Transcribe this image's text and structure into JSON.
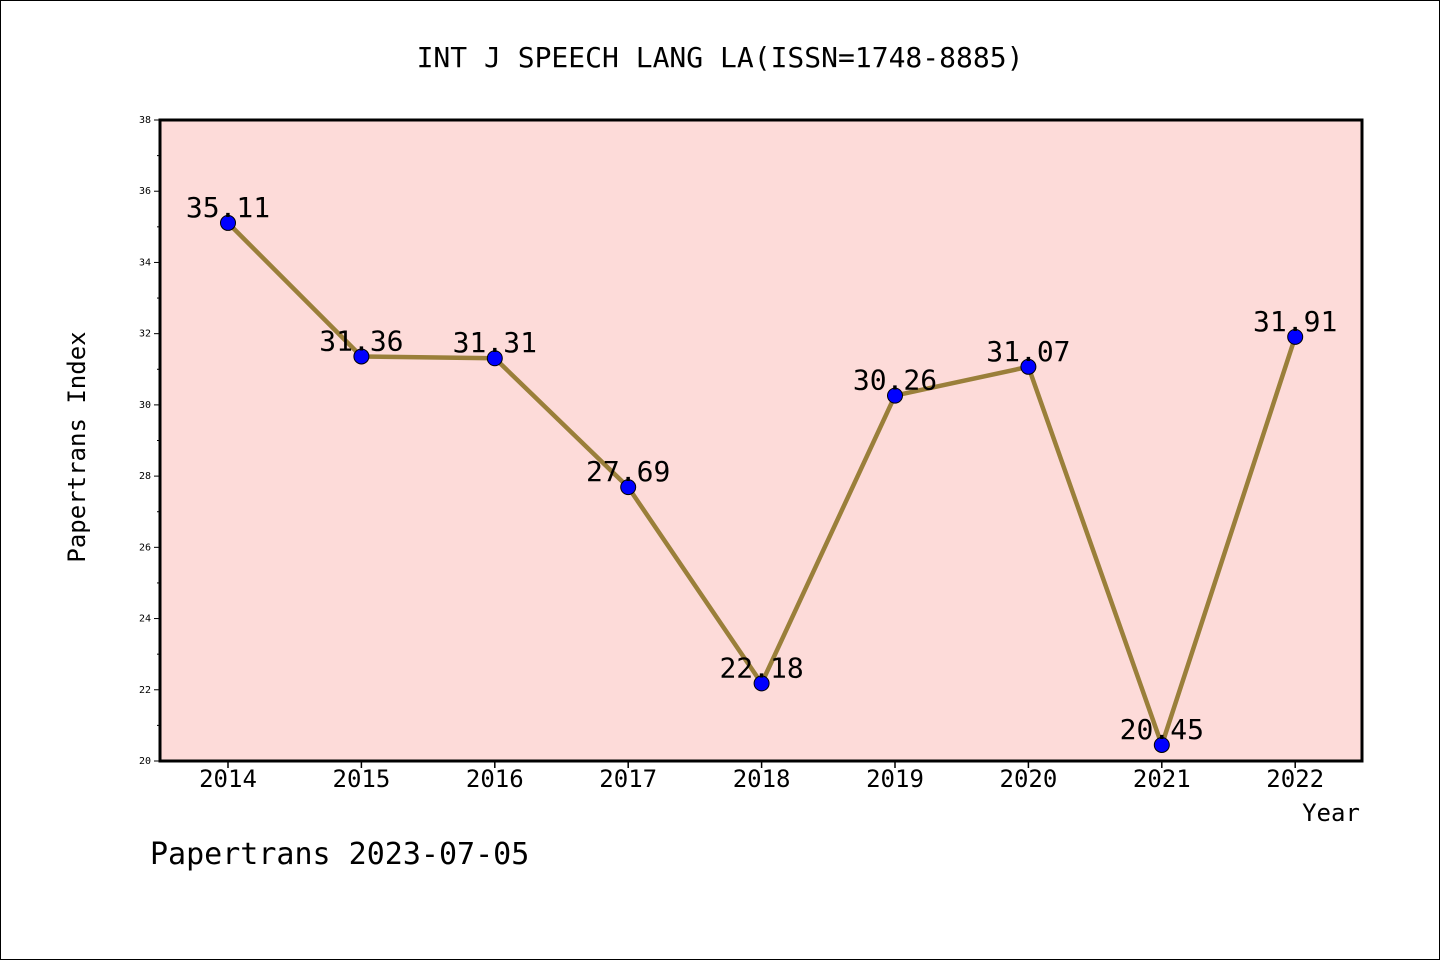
{
  "title": "INT J SPEECH LANG LA(ISSN=1748-8885)",
  "footer": "Papertrans 2023-07-05",
  "colors": {
    "plot_background": "#fddbd9",
    "line": "#9a7f3a",
    "marker": "#0000ff",
    "axis": "#000000"
  },
  "chart_data": {
    "type": "line",
    "title": "INT J SPEECH LANG LA(ISSN=1748-8885)",
    "xlabel": "Year",
    "ylabel": "Papertrans Index",
    "categories": [
      "2014",
      "2015",
      "2016",
      "2017",
      "2018",
      "2019",
      "2020",
      "2021",
      "2022"
    ],
    "values": [
      35.11,
      31.36,
      31.31,
      27.69,
      22.18,
      30.26,
      31.07,
      20.45,
      31.91
    ],
    "data_labels": [
      "35.11",
      "31.36",
      "31.31",
      "27.69",
      "22.18",
      "30.26",
      "31.07",
      "20.45",
      "31.91"
    ],
    "ylim": [
      20,
      38
    ],
    "yticks": [
      20,
      22,
      24,
      26,
      28,
      30,
      32,
      34,
      36,
      38
    ],
    "grid": false,
    "legend": "none"
  }
}
